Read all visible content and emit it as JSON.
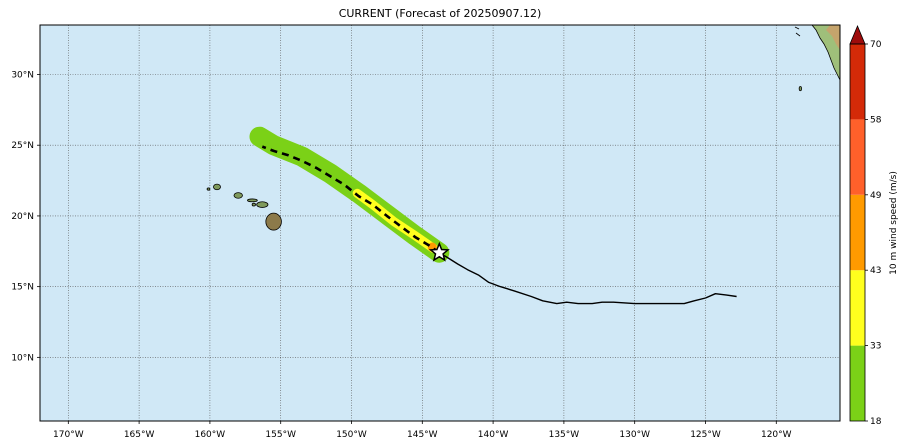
{
  "title": "CURRENT (Forecast of 20250907.12)",
  "map": {
    "lon_range": [
      -172,
      -115.5
    ],
    "lat_range": [
      5.5,
      33.5
    ],
    "ocean_color": "#d0e8f6",
    "x_ticks": [
      {
        "value": -170,
        "label": "170°W"
      },
      {
        "value": -165,
        "label": "165°W"
      },
      {
        "value": -160,
        "label": "160°W"
      },
      {
        "value": -155,
        "label": "155°W"
      },
      {
        "value": -150,
        "label": "150°W"
      },
      {
        "value": -145,
        "label": "145°W"
      },
      {
        "value": -140,
        "label": "140°W"
      },
      {
        "value": -135,
        "label": "135°W"
      },
      {
        "value": -130,
        "label": "130°W"
      },
      {
        "value": -125,
        "label": "125°W"
      },
      {
        "value": -120,
        "label": "120°W"
      }
    ],
    "y_ticks": [
      {
        "value": 10,
        "label": "10°N"
      },
      {
        "value": 15,
        "label": "15°N"
      },
      {
        "value": 20,
        "label": "20°N"
      },
      {
        "value": 25,
        "label": "25°N"
      },
      {
        "value": 30,
        "label": "30°N"
      }
    ],
    "grid": true
  },
  "past_track": [
    [
      -122.8,
      14.3
    ],
    [
      -123.5,
      14.4
    ],
    [
      -124.3,
      14.5
    ],
    [
      -125.0,
      14.2
    ],
    [
      -125.8,
      14.0
    ],
    [
      -126.5,
      13.8
    ],
    [
      -128.0,
      13.8
    ],
    [
      -130.0,
      13.8
    ],
    [
      -131.5,
      13.9
    ],
    [
      -132.3,
      13.9
    ],
    [
      -133.0,
      13.8
    ],
    [
      -134.0,
      13.8
    ],
    [
      -134.8,
      13.9
    ],
    [
      -135.5,
      13.8
    ],
    [
      -136.5,
      14.0
    ],
    [
      -137.3,
      14.3
    ],
    [
      -138.5,
      14.7
    ],
    [
      -139.5,
      15.0
    ],
    [
      -140.3,
      15.3
    ],
    [
      -141.0,
      15.8
    ],
    [
      -141.8,
      16.2
    ],
    [
      -142.5,
      16.6
    ],
    [
      -143.3,
      17.1
    ],
    [
      -143.8,
      17.4
    ]
  ],
  "forecast_track": [
    [
      -143.8,
      17.4
    ],
    [
      -144.5,
      17.9
    ],
    [
      -145.5,
      18.5
    ],
    [
      -146.3,
      19.1
    ],
    [
      -147.5,
      20.0
    ],
    [
      -148.5,
      20.8
    ],
    [
      -149.5,
      21.4
    ],
    [
      -150.5,
      22.2
    ],
    [
      -151.5,
      22.8
    ],
    [
      -152.5,
      23.4
    ],
    [
      -153.5,
      23.9
    ],
    [
      -154.5,
      24.3
    ],
    [
      -155.5,
      24.6
    ],
    [
      -156.3,
      24.9
    ]
  ],
  "storm_position": {
    "lon": -143.8,
    "lat": 17.4
  },
  "wind_swath": {
    "green_path": [
      [
        -143.8,
        17.4
      ],
      [
        -145.5,
        18.6
      ],
      [
        -147.5,
        20.1
      ],
      [
        -149.5,
        21.6
      ],
      [
        -151.5,
        23.0
      ],
      [
        -153.5,
        24.2
      ],
      [
        -155.5,
        25.0
      ],
      [
        -156.5,
        25.6
      ]
    ],
    "yellow_path": [
      [
        -144.2,
        17.7
      ],
      [
        -145.5,
        18.6
      ],
      [
        -147.0,
        19.6
      ],
      [
        -148.5,
        20.8
      ],
      [
        -149.6,
        21.6
      ]
    ],
    "orange_position": {
      "lon": -144.3,
      "lat": 17.8
    }
  },
  "islands": [
    {
      "name": "hawaii",
      "lon": -155.5,
      "lat": 19.6,
      "rx": 0.55,
      "ry": 0.6
    },
    {
      "name": "maui",
      "lon": -156.3,
      "lat": 20.8,
      "rx": 0.4,
      "ry": 0.2
    },
    {
      "name": "molokai",
      "lon": -157.0,
      "lat": 21.1,
      "rx": 0.35,
      "ry": 0.1
    },
    {
      "name": "lanai",
      "lon": -156.9,
      "lat": 20.8,
      "rx": 0.12,
      "ry": 0.1
    },
    {
      "name": "oahu",
      "lon": -158.0,
      "lat": 21.45,
      "rx": 0.3,
      "ry": 0.2
    },
    {
      "name": "kauai",
      "lon": -159.5,
      "lat": 22.05,
      "rx": 0.25,
      "ry": 0.2
    },
    {
      "name": "niihau",
      "lon": -160.1,
      "lat": 21.9,
      "rx": 0.1,
      "ry": 0.08
    },
    {
      "name": "guadalupe",
      "lon": -118.3,
      "lat": 29.0,
      "rx": 0.07,
      "ry": 0.15
    }
  ],
  "colorbar": {
    "label": "10 m wind speed (m/s)",
    "levels": [
      {
        "from": 18,
        "to": 33,
        "color": "#7bd117"
      },
      {
        "from": 33,
        "to": 43,
        "color": "#ffff1e"
      },
      {
        "from": 43,
        "to": 49,
        "color": "#ff9a00"
      },
      {
        "from": 49,
        "to": 58,
        "color": "#ff602a"
      },
      {
        "from": 58,
        "to": 70,
        "color": "#d42a08"
      }
    ],
    "extend_color": "#9e0c0c",
    "ticks": [
      "18",
      "33",
      "43",
      "49",
      "58",
      "70"
    ]
  }
}
